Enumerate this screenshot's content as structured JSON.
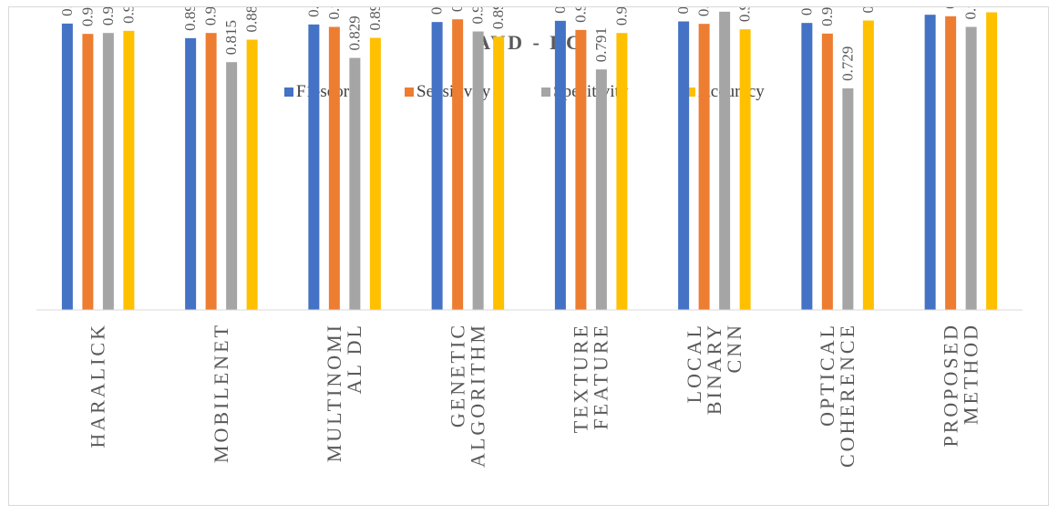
{
  "chart_data": {
    "type": "bar",
    "title": "AVD - BC",
    "categories": [
      [
        "HARALICK"
      ],
      [
        "MOBILENET"
      ],
      [
        "MULTINOMI",
        "AL DL"
      ],
      [
        "GENETIC",
        "ALGORITHM"
      ],
      [
        "TEXTURE",
        "FEATURE"
      ],
      [
        "LOCAL",
        "BINARY",
        "CNN"
      ],
      [
        "OPTICAL",
        "COHERENCE"
      ],
      [
        "PROPOSED",
        "METHOD"
      ]
    ],
    "series": [
      {
        "name": "F1-score",
        "color": "#4472c4",
        "values": [
          0.942,
          0.894,
          0.939,
          0.947,
          0.951,
          0.949,
          0.944,
          0.971
        ]
      },
      {
        "name": "Sensitivity",
        "color": "#ed7d31",
        "values": [
          0.908,
          0.911,
          0.931,
          0.956,
          0.921,
          0.941,
          0.909,
          0.966
        ]
      },
      {
        "name": "Specitivity",
        "color": "#a5a5a5",
        "values": [
          0.911,
          0.815,
          0.829,
          0.916,
          0.791,
          0.981,
          0.729,
          0.931
        ]
      },
      {
        "name": "Accuracy",
        "color": "#ffc000",
        "values": [
          0.918,
          0.889,
          0.895,
          0.899,
          0.911,
          0.923,
          0.952,
          0.979
        ]
      }
    ],
    "xlabel": "",
    "ylabel": "",
    "ylim": [
      0,
      1
    ],
    "grid": false,
    "legend_position": "top"
  }
}
